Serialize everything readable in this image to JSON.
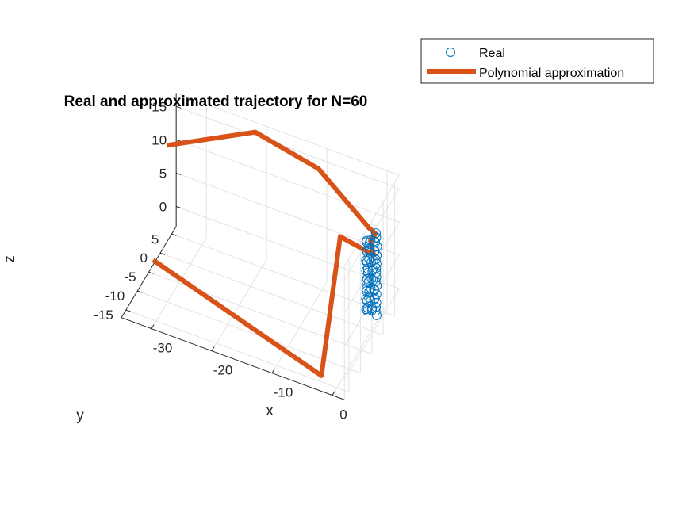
{
  "chart_data": {
    "type": "line3d",
    "title": "Real and approximated trajectory for N=60",
    "xlabel": "x",
    "ylabel": "y",
    "zlabel": "z",
    "xlim": [
      -35,
      2
    ],
    "ylim": [
      -17,
      7
    ],
    "zlim": [
      -3,
      17
    ],
    "x_ticks": [
      0,
      -10,
      -20,
      -30
    ],
    "y_ticks": [
      5,
      0,
      -5,
      -10,
      -15
    ],
    "z_ticks": [
      15,
      10,
      5,
      0
    ],
    "grid": true,
    "legend_position": "top-right",
    "series": [
      {
        "name": "Real",
        "style": "markers",
        "marker": "circle",
        "color": "#0072BD",
        "points": [
          [
            0.4,
            1.0,
            11.2
          ],
          [
            0.7,
            0.4,
            11.0
          ],
          [
            0.6,
            -0.3,
            10.8
          ],
          [
            0.0,
            -0.7,
            10.6
          ],
          [
            -0.6,
            -0.5,
            10.4
          ],
          [
            -0.8,
            0.1,
            10.2
          ],
          [
            -0.4,
            0.8,
            10.0
          ],
          [
            0.3,
            1.0,
            9.8
          ],
          [
            0.8,
            0.5,
            9.6
          ],
          [
            0.7,
            -0.3,
            9.4
          ],
          [
            0.1,
            -0.8,
            9.2
          ],
          [
            -0.5,
            -0.6,
            9.0
          ],
          [
            -0.8,
            0.0,
            8.8
          ],
          [
            -0.5,
            0.7,
            8.6
          ],
          [
            0.2,
            1.0,
            8.4
          ],
          [
            0.7,
            0.6,
            8.2
          ],
          [
            0.8,
            -0.1,
            8.0
          ],
          [
            0.3,
            -0.8,
            7.8
          ],
          [
            -0.4,
            -0.8,
            7.6
          ],
          [
            -0.8,
            -0.2,
            7.4
          ],
          [
            -0.6,
            0.6,
            7.2
          ],
          [
            0.0,
            1.0,
            7.0
          ],
          [
            0.6,
            0.8,
            6.8
          ],
          [
            0.8,
            0.1,
            6.6
          ],
          [
            0.4,
            -0.6,
            6.4
          ],
          [
            -0.2,
            -0.9,
            6.2
          ],
          [
            -0.7,
            -0.4,
            6.0
          ],
          [
            -0.7,
            0.4,
            5.8
          ],
          [
            -0.1,
            1.0,
            5.6
          ],
          [
            0.5,
            0.9,
            5.4
          ],
          [
            0.8,
            0.2,
            5.2
          ],
          [
            0.5,
            -0.5,
            5.0
          ],
          [
            -0.1,
            -0.9,
            4.8
          ],
          [
            -0.6,
            -0.6,
            4.6
          ],
          [
            -0.8,
            0.2,
            4.4
          ],
          [
            -0.3,
            0.9,
            4.2
          ],
          [
            0.4,
            0.9,
            4.0
          ],
          [
            0.8,
            0.4,
            3.8
          ],
          [
            0.6,
            -0.4,
            3.6
          ],
          [
            0.0,
            -0.9,
            3.4
          ],
          [
            -0.5,
            -0.7,
            3.2
          ],
          [
            -0.8,
            0.0,
            3.0
          ],
          [
            -0.4,
            0.8,
            2.8
          ],
          [
            0.2,
            1.0,
            2.6
          ],
          [
            0.7,
            0.5,
            2.4
          ],
          [
            0.7,
            -0.2,
            2.2
          ],
          [
            0.2,
            -0.8,
            2.0
          ],
          [
            -0.4,
            -0.8,
            1.8
          ],
          [
            -0.8,
            -0.2,
            1.6
          ],
          [
            -0.6,
            0.6,
            1.4
          ],
          [
            0.1,
            1.0,
            1.2
          ],
          [
            0.6,
            0.7,
            1.0
          ],
          [
            0.8,
            0.0,
            0.8
          ],
          [
            0.4,
            -0.7,
            0.6
          ],
          [
            -0.3,
            -0.9,
            0.4
          ],
          [
            -0.7,
            -0.4,
            0.2
          ],
          [
            -0.7,
            0.3,
            0.0
          ],
          [
            -0.2,
            0.9,
            -0.2
          ],
          [
            0.4,
            0.9,
            -0.4
          ],
          [
            0.8,
            0.3,
            -0.6
          ]
        ]
      },
      {
        "name": "Polynomial approximation",
        "style": "line",
        "color": "#D95319",
        "points": [
          [
            -30.5,
            -15.0,
            6.0
          ],
          [
            -2.0,
            -16.5,
            -1.0
          ],
          [
            -4.0,
            -3.0,
            11.5
          ],
          [
            0.4,
            0.0,
            8.5
          ],
          [
            0.2,
            -0.8,
            11.0
          ],
          [
            0.7,
            0.0,
            11.8
          ],
          [
            0.0,
            -1.0,
            13.0
          ],
          [
            -9.5,
            2.0,
            17.0
          ],
          [
            -20.0,
            2.0,
            19.0
          ],
          [
            -32.0,
            -5.0,
            17.0
          ]
        ]
      }
    ]
  },
  "legend": {
    "entries": [
      {
        "label": "Real",
        "color": "#0072BD"
      },
      {
        "label": "Polynomial approximation",
        "color": "#D95319"
      }
    ]
  },
  "colors": {
    "axis": "#262626",
    "grid": "#e3e3e3",
    "real": "#0072BD",
    "poly": "#D95319"
  }
}
